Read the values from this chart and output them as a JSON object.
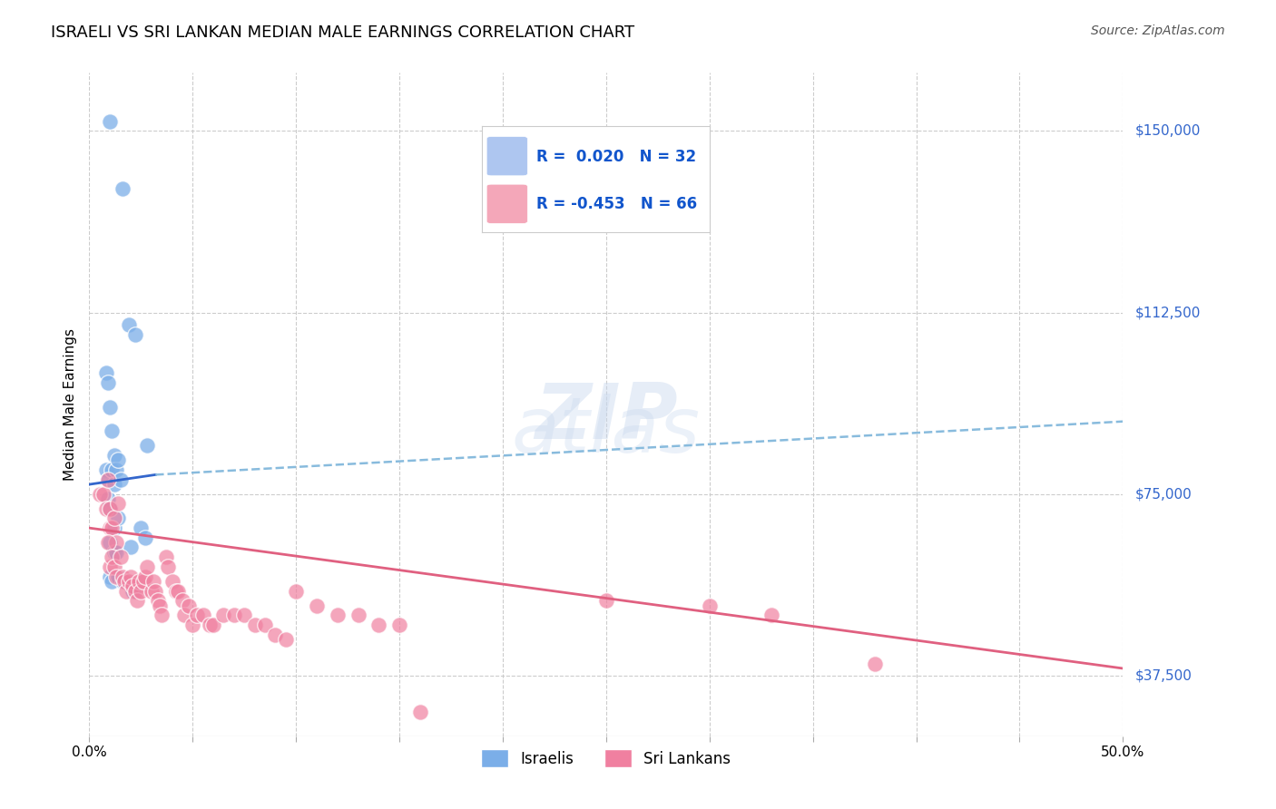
{
  "title": "ISRAELI VS SRI LANKAN MEDIAN MALE EARNINGS CORRELATION CHART",
  "source": "Source: ZipAtlas.com",
  "ylabel": "Median Male Earnings",
  "yticks": [
    37500,
    75000,
    112500,
    150000
  ],
  "ytick_labels": [
    "$37,500",
    "$75,000",
    "$112,500",
    "$150,000"
  ],
  "watermark_zip": "ZIP",
  "watermark_atlas": "atlas",
  "legend_israeli": {
    "R": "0.020",
    "N": "32",
    "color": "#aec6f0"
  },
  "legend_srilankan": {
    "R": "-0.453",
    "N": "66",
    "color": "#f4a7b9"
  },
  "israeli_color": "#7baee8",
  "srilankan_color": "#f080a0",
  "trend_israeli_solid_color": "#3366cc",
  "trend_israeli_dashed_color": "#88bbdd",
  "trend_srilankan_color": "#e06080",
  "background_color": "#ffffff",
  "grid_color": "#cccccc",
  "israeli_x": [
    0.01,
    0.016,
    0.019,
    0.022,
    0.028,
    0.008,
    0.009,
    0.01,
    0.011,
    0.012,
    0.008,
    0.009,
    0.011,
    0.012,
    0.013,
    0.014,
    0.009,
    0.01,
    0.012,
    0.014,
    0.015,
    0.01,
    0.012,
    0.013,
    0.02,
    0.025,
    0.027,
    0.01,
    0.011,
    0.014,
    0.016,
    0.021
  ],
  "israeli_y": [
    152000,
    138000,
    110000,
    108000,
    85000,
    100000,
    98000,
    93000,
    88000,
    83000,
    80000,
    78000,
    80000,
    77000,
    80000,
    82000,
    74000,
    72000,
    68000,
    70000,
    78000,
    65000,
    63000,
    63000,
    64000,
    68000,
    66000,
    58000,
    57000,
    58000,
    57000,
    55000
  ],
  "srilankan_x": [
    0.005,
    0.007,
    0.008,
    0.009,
    0.01,
    0.01,
    0.011,
    0.012,
    0.013,
    0.014,
    0.009,
    0.01,
    0.011,
    0.012,
    0.013,
    0.015,
    0.016,
    0.017,
    0.018,
    0.019,
    0.02,
    0.021,
    0.022,
    0.023,
    0.024,
    0.025,
    0.026,
    0.027,
    0.028,
    0.03,
    0.031,
    0.032,
    0.033,
    0.034,
    0.035,
    0.037,
    0.038,
    0.04,
    0.042,
    0.043,
    0.045,
    0.046,
    0.048,
    0.05,
    0.052,
    0.055,
    0.058,
    0.06,
    0.065,
    0.07,
    0.075,
    0.08,
    0.085,
    0.09,
    0.095,
    0.1,
    0.11,
    0.12,
    0.13,
    0.14,
    0.15,
    0.16,
    0.25,
    0.3,
    0.33,
    0.38
  ],
  "srilankan_y": [
    75000,
    75000,
    72000,
    78000,
    72000,
    68000,
    68000,
    70000,
    65000,
    73000,
    65000,
    60000,
    62000,
    60000,
    58000,
    62000,
    58000,
    57000,
    55000,
    57000,
    58000,
    56000,
    55000,
    53000,
    57000,
    55000,
    57000,
    58000,
    60000,
    55000,
    57000,
    55000,
    53000,
    52000,
    50000,
    62000,
    60000,
    57000,
    55000,
    55000,
    53000,
    50000,
    52000,
    48000,
    50000,
    50000,
    48000,
    48000,
    50000,
    50000,
    50000,
    48000,
    48000,
    46000,
    45000,
    55000,
    52000,
    50000,
    50000,
    48000,
    48000,
    30000,
    53000,
    52000,
    50000,
    40000
  ],
  "xmin": 0.0,
  "xmax": 0.5,
  "ymin": 25000,
  "ymax": 162000,
  "trend_israeli_x0": 0.0,
  "trend_israeli_y0": 77000,
  "trend_israeli_x1": 0.032,
  "trend_israeli_y1": 79000,
  "trend_israeli_dashed_x0": 0.032,
  "trend_israeli_dashed_y0": 79000,
  "trend_israeli_dashed_x1": 0.5,
  "trend_israeli_dashed_y1": 90000,
  "trend_srilankan_x0": 0.0,
  "trend_srilankan_y0": 68000,
  "trend_srilankan_x1": 0.5,
  "trend_srilankan_y1": 39000
}
